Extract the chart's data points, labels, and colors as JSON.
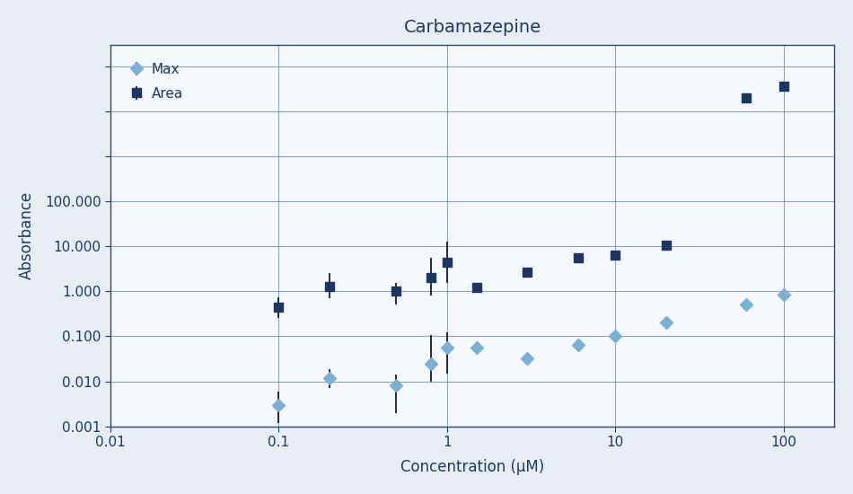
{
  "title": "Carbamazepine",
  "xlabel": "Concentration (μM)",
  "ylabel": "Absorbance",
  "xlim": [
    0.01,
    200
  ],
  "ylim": [
    0.001,
    300000
  ],
  "background_color": "#e8eef4",
  "plot_bg_color": "#f5f8fc",
  "grid_color": "#4a6fa0",
  "title_color": "#1a3a6b",
  "axis_color": "#2a4a7a",
  "tick_color": "#1a3a6b",
  "label_color": "#1a3a6b",
  "max_x": [
    0.1,
    0.2,
    0.5,
    0.8,
    1.0,
    1.5,
    3.0,
    6.0,
    10.0,
    20.0,
    60.0,
    100.0
  ],
  "max_y": [
    0.003,
    0.012,
    0.008,
    0.025,
    0.055,
    0.055,
    0.033,
    0.065,
    0.1,
    0.2,
    0.5,
    0.85
  ],
  "max_yerr_lo": [
    0.0018,
    0.005,
    0.006,
    0.015,
    0.04,
    0.0,
    0.0,
    0.0,
    0.0,
    0.0,
    0.0,
    0.0
  ],
  "max_yerr_hi": [
    0.003,
    0.007,
    0.006,
    0.08,
    0.065,
    0.0,
    0.0,
    0.0,
    0.0,
    0.0,
    0.0,
    0.0
  ],
  "area_x": [
    0.1,
    0.2,
    0.5,
    0.8,
    1.0,
    1.5,
    3.0,
    6.0,
    10.0,
    20.0,
    60.0,
    100.0
  ],
  "area_y": [
    0.45,
    1.3,
    1.0,
    2.0,
    4.5,
    1.2,
    2.7,
    5.5,
    6.5,
    10.5,
    20000.0,
    35000.0
  ],
  "area_yerr_lo": [
    0.2,
    0.6,
    0.5,
    1.2,
    3.0,
    0.15,
    0.0,
    0.0,
    0.0,
    0.0,
    0.0,
    0.0
  ],
  "area_yerr_hi": [
    0.3,
    1.2,
    0.5,
    3.5,
    8.0,
    0.2,
    0.0,
    0.0,
    0.0,
    0.0,
    0.0,
    0.0
  ],
  "max_color": "#7bafd4",
  "area_color": "#1e3461",
  "max_marker": "D",
  "area_marker": "s",
  "marker_size": 7,
  "legend_fontsize": 11,
  "axis_fontsize": 12,
  "title_fontsize": 14,
  "yticks": [
    0.001,
    0.01,
    0.1,
    1.0,
    10.0,
    100.0,
    1000.0,
    10000.0,
    100000.0
  ],
  "ytick_labels": [
    "0.001",
    "0.010",
    "0.100",
    "1.000",
    "10.000",
    "100.000",
    "",
    "",
    ""
  ],
  "xticks": [
    0.01,
    0.1,
    1,
    10,
    100
  ],
  "xtick_labels": [
    "0.01",
    "0.1",
    "1",
    "10",
    "100"
  ]
}
